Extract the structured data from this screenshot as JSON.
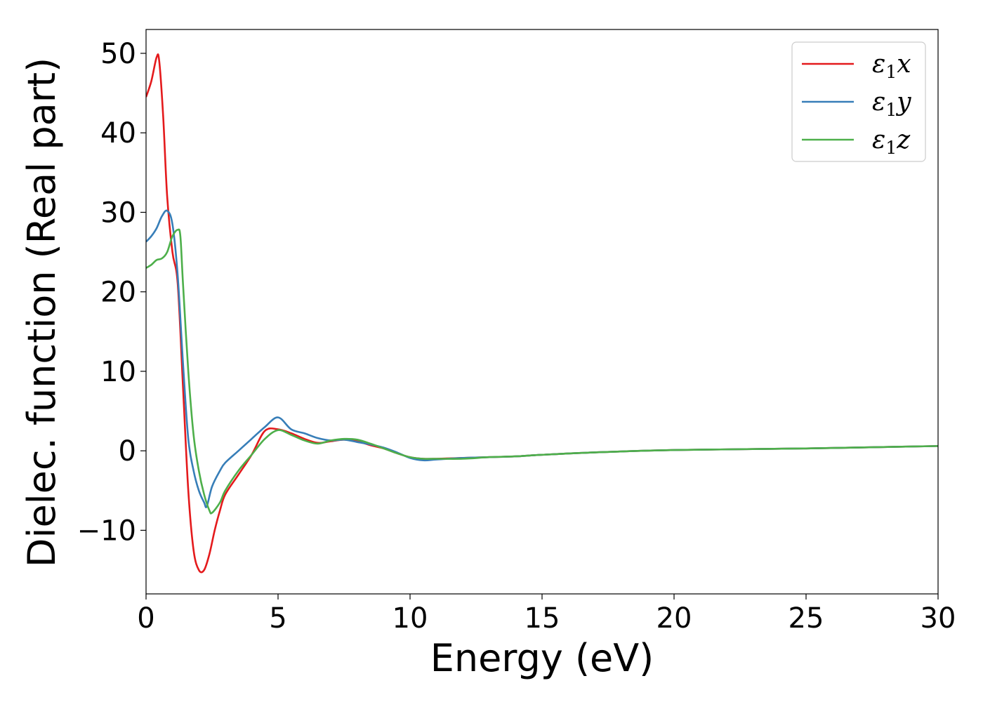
{
  "chart_data": {
    "type": "line",
    "xlabel": "Energy (eV)",
    "ylabel": "Dielec. function (Real part)",
    "xlim": [
      0,
      30
    ],
    "ylim": [
      -18,
      53
    ],
    "xticks": [
      0,
      5,
      10,
      15,
      20,
      25,
      30
    ],
    "xtick_labels": [
      "0",
      "5",
      "10",
      "15",
      "20",
      "25",
      "30"
    ],
    "yticks": [
      -10,
      0,
      10,
      20,
      30,
      40,
      50
    ],
    "ytick_labels": [
      "−10",
      "0",
      "10",
      "20",
      "30",
      "40",
      "50"
    ],
    "grid": false,
    "legend_position": "top-right",
    "series": [
      {
        "name": "x",
        "legend_symbol": "ε",
        "legend_sub": "1",
        "color": "#e41a1c",
        "x": [
          0,
          0.2,
          0.4,
          0.5,
          0.65,
          0.8,
          1.0,
          1.2,
          1.4,
          1.6,
          1.8,
          2.0,
          2.2,
          2.4,
          2.6,
          2.8,
          3.0,
          3.5,
          4.0,
          4.5,
          5.0,
          5.5,
          6.0,
          6.5,
          7.0,
          7.5,
          8.0,
          8.5,
          9.0,
          9.5,
          10.0,
          10.5,
          11.0,
          12.0,
          13.0,
          14.0,
          15.0,
          17.0,
          20.0,
          25.0,
          30.0
        ],
        "y": [
          44.5,
          46.5,
          49.5,
          49.0,
          42.0,
          32.0,
          25.0,
          21.0,
          8.0,
          -5.0,
          -12.5,
          -15.0,
          -15.0,
          -13.0,
          -10.0,
          -7.5,
          -5.5,
          -3.0,
          -0.5,
          2.5,
          2.7,
          2.2,
          1.5,
          1.0,
          1.2,
          1.4,
          1.2,
          0.7,
          0.3,
          -0.3,
          -0.8,
          -1.0,
          -1.0,
          -0.9,
          -0.8,
          -0.7,
          -0.5,
          -0.2,
          0.1,
          0.3,
          0.6
        ]
      },
      {
        "name": "y",
        "legend_symbol": "ε",
        "legend_sub": "1",
        "color": "#377eb8",
        "x": [
          0,
          0.2,
          0.4,
          0.6,
          0.8,
          1.0,
          1.2,
          1.4,
          1.6,
          1.8,
          2.0,
          2.2,
          2.3,
          2.5,
          2.8,
          3.0,
          3.5,
          4.0,
          4.5,
          5.0,
          5.5,
          6.0,
          6.5,
          7.0,
          7.5,
          8.0,
          8.5,
          9.0,
          9.5,
          10.0,
          10.5,
          11.0,
          12.0,
          13.0,
          14.0,
          15.0,
          17.0,
          20.0,
          25.0,
          30.0
        ],
        "y": [
          26.3,
          27.0,
          28.0,
          29.5,
          30.2,
          28.5,
          22.0,
          11.0,
          1.5,
          -2.5,
          -5.0,
          -6.5,
          -7.0,
          -4.5,
          -2.5,
          -1.5,
          0.0,
          1.5,
          3.0,
          4.2,
          2.7,
          2.2,
          1.6,
          1.3,
          1.4,
          1.1,
          0.8,
          0.4,
          -0.2,
          -0.9,
          -1.2,
          -1.1,
          -0.9,
          -0.8,
          -0.7,
          -0.5,
          -0.2,
          0.1,
          0.3,
          0.6
        ]
      },
      {
        "name": "z",
        "legend_symbol": "ε",
        "legend_sub": "1",
        "color": "#4daf4a",
        "x": [
          0,
          0.2,
          0.4,
          0.6,
          0.8,
          1.0,
          1.2,
          1.3,
          1.4,
          1.6,
          1.8,
          2.0,
          2.2,
          2.4,
          2.5,
          2.8,
          3.0,
          3.5,
          4.0,
          4.5,
          5.0,
          5.5,
          6.0,
          6.5,
          7.0,
          7.5,
          8.0,
          8.5,
          9.0,
          9.5,
          10.0,
          10.5,
          11.0,
          12.0,
          13.0,
          14.0,
          15.0,
          17.0,
          20.0,
          25.0,
          30.0
        ],
        "y": [
          23.0,
          23.4,
          24.0,
          24.2,
          25.0,
          27.0,
          27.8,
          27.0,
          21.0,
          10.0,
          2.0,
          -2.5,
          -5.5,
          -7.5,
          -7.8,
          -6.5,
          -5.0,
          -2.5,
          -0.5,
          1.5,
          2.6,
          2.0,
          1.3,
          0.9,
          1.3,
          1.5,
          1.4,
          0.9,
          0.3,
          -0.3,
          -0.8,
          -1.0,
          -1.0,
          -1.0,
          -0.8,
          -0.7,
          -0.5,
          -0.2,
          0.1,
          0.3,
          0.6
        ]
      }
    ]
  }
}
